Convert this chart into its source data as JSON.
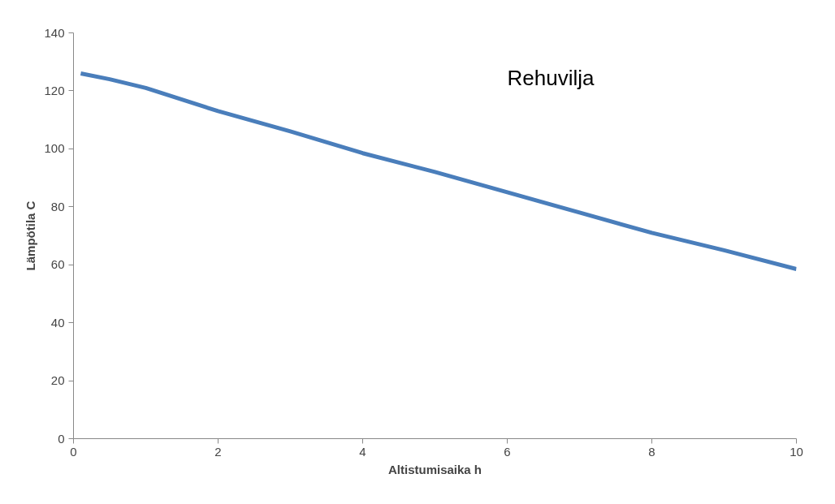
{
  "chart_data": {
    "type": "line",
    "title": "Rehuvilja",
    "xlabel": "Altistumisaika h",
    "ylabel": "Lämpötila C",
    "x": [
      0.1,
      0.5,
      1,
      2,
      3,
      4,
      5,
      6,
      7,
      8,
      9,
      10
    ],
    "series": [
      {
        "color": "#4a7ebb",
        "values": [
          126,
          124,
          121,
          113,
          106,
          98.5,
          92,
          85,
          78,
          71,
          65,
          58.5
        ]
      }
    ],
    "xlim": [
      0,
      10
    ],
    "ylim": [
      0,
      140
    ],
    "xticks": [
      0,
      2,
      4,
      6,
      8,
      10
    ],
    "yticks": [
      0,
      20,
      40,
      60,
      80,
      100,
      120,
      140
    ],
    "grid": false,
    "marker": "none",
    "line_style": "solid"
  }
}
